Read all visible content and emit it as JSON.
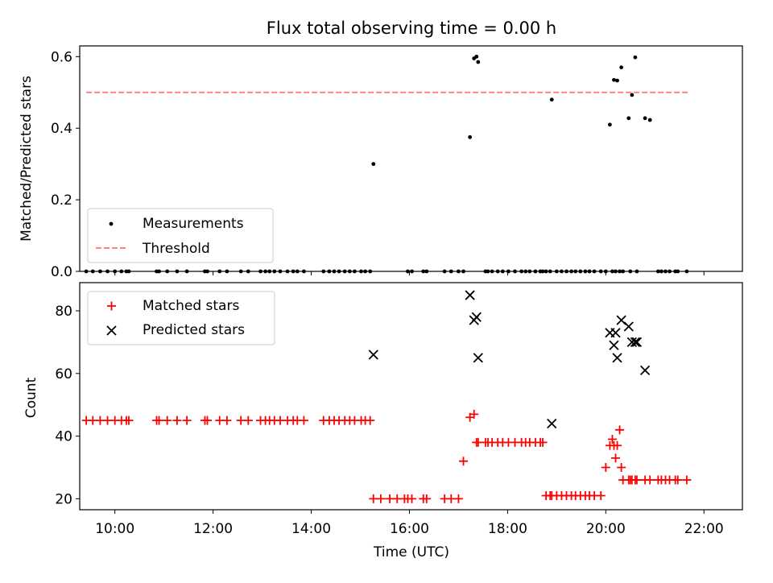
{
  "figure": {
    "title": "Flux total observing time = 0.00 h",
    "xlabel": "Time (UTC)",
    "xticks": [
      "10:00",
      "12:00",
      "14:00",
      "16:00",
      "18:00",
      "20:00",
      "22:00"
    ]
  },
  "chart_data": [
    {
      "type": "scatter",
      "ylabel": "Matched/Predicted stars",
      "xlim": [
        "09:17",
        "22:47"
      ],
      "ylim": [
        0,
        0.63
      ],
      "yticks": [
        "0.0",
        "0.2",
        "0.4",
        "0.6"
      ],
      "legend_position": "lower-left",
      "series": [
        {
          "name": "Measurements",
          "marker": "dot",
          "color": "#000000",
          "x": [
            "09:25",
            "09:33",
            "09:42",
            "09:51",
            "10:00",
            "10:08",
            "10:14",
            "10:17",
            "10:51",
            "10:54",
            "11:04",
            "11:16",
            "11:28",
            "11:50",
            "11:53",
            "12:08",
            "12:17",
            "12:34",
            "12:43",
            "12:58",
            "13:04",
            "13:09",
            "13:15",
            "13:22",
            "13:31",
            "13:38",
            "13:43",
            "13:51",
            "14:15",
            "14:22",
            "14:28",
            "14:34",
            "14:41",
            "14:47",
            "14:53",
            "15:01",
            "15:06",
            "15:12",
            "15:16",
            "15:58",
            "16:03",
            "16:17",
            "16:21",
            "16:43",
            "16:51",
            "17:00",
            "17:06",
            "17:14",
            "17:19",
            "17:22",
            "17:24",
            "17:33",
            "17:36",
            "17:41",
            "17:48",
            "17:54",
            "18:01",
            "18:09",
            "18:17",
            "18:22",
            "18:27",
            "18:34",
            "18:40",
            "18:43",
            "18:47",
            "18:52",
            "18:54",
            "19:00",
            "19:06",
            "19:12",
            "19:18",
            "19:23",
            "19:29",
            "19:35",
            "19:40",
            "19:46",
            "19:54",
            "20:00",
            "20:05",
            "20:08",
            "20:10",
            "20:12",
            "20:14",
            "20:17",
            "20:19",
            "20:21",
            "20:28",
            "20:30",
            "20:32",
            "20:36",
            "20:38",
            "20:48",
            "20:54",
            "21:04",
            "21:08",
            "21:13",
            "21:18",
            "21:25",
            "21:28",
            "21:39"
          ],
          "y": [
            0,
            0,
            0,
            0,
            0,
            0,
            0,
            0,
            0,
            0,
            0,
            0,
            0,
            0,
            0,
            0,
            0,
            0,
            0,
            0,
            0,
            0,
            0,
            0,
            0,
            0,
            0,
            0,
            0,
            0,
            0,
            0,
            0,
            0,
            0,
            0,
            0,
            0,
            0.3,
            0,
            0,
            0,
            0,
            0,
            0,
            0,
            0,
            0.375,
            0.595,
            0.6,
            0.585,
            0,
            0,
            0,
            0,
            0,
            0,
            0,
            0,
            0,
            0,
            0,
            0,
            0,
            0,
            0,
            0.48,
            0,
            0,
            0,
            0,
            0,
            0,
            0,
            0,
            0,
            0,
            0,
            0.41,
            0,
            0.535,
            0,
            0.533,
            0,
            0.57,
            0,
            0.428,
            0,
            0.493,
            0.598,
            0,
            0.428,
            0.423,
            0,
            0,
            0,
            0,
            0,
            0,
            0
          ]
        },
        {
          "name": "Threshold",
          "style": "dashed",
          "color": "#ff8080",
          "x": [
            "09:25",
            "21:40"
          ],
          "y": [
            0.5,
            0.5
          ]
        }
      ]
    },
    {
      "type": "scatter",
      "ylabel": "Count",
      "xlim": [
        "09:17",
        "22:47"
      ],
      "ylim": [
        16.5,
        89
      ],
      "yticks": [
        "20",
        "40",
        "60",
        "80"
      ],
      "legend_position": "upper-left",
      "series": [
        {
          "name": "Matched stars",
          "marker": "plus",
          "color": "#ff0000",
          "x": [
            "09:25",
            "09:33",
            "09:42",
            "09:51",
            "10:00",
            "10:08",
            "10:14",
            "10:17",
            "10:51",
            "10:54",
            "11:04",
            "11:16",
            "11:28",
            "11:50",
            "11:53",
            "12:08",
            "12:17",
            "12:34",
            "12:43",
            "12:58",
            "13:04",
            "13:09",
            "13:15",
            "13:22",
            "13:31",
            "13:38",
            "13:43",
            "13:51",
            "14:15",
            "14:22",
            "14:28",
            "14:34",
            "14:41",
            "14:47",
            "14:53",
            "15:01",
            "15:06",
            "15:12",
            "15:16",
            "15:25",
            "15:36",
            "15:45",
            "15:54",
            "15:58",
            "16:03",
            "16:17",
            "16:21",
            "16:43",
            "16:51",
            "17:00",
            "17:06",
            "17:14",
            "17:19",
            "17:22",
            "17:24",
            "17:33",
            "17:36",
            "17:41",
            "17:48",
            "17:54",
            "18:01",
            "18:09",
            "18:17",
            "18:22",
            "18:27",
            "18:34",
            "18:40",
            "18:43",
            "18:47",
            "18:52",
            "18:54",
            "19:00",
            "19:06",
            "19:12",
            "19:18",
            "19:23",
            "19:29",
            "19:35",
            "19:40",
            "19:46",
            "19:54",
            "20:00",
            "20:05",
            "20:08",
            "20:10",
            "20:12",
            "20:14",
            "20:17",
            "20:19",
            "20:21",
            "20:28",
            "20:30",
            "20:32",
            "20:36",
            "20:38",
            "20:48",
            "20:54",
            "21:04",
            "21:08",
            "21:13",
            "21:18",
            "21:25",
            "21:28",
            "21:39"
          ],
          "y": [
            45,
            45,
            45,
            45,
            45,
            45,
            45,
            45,
            45,
            45,
            45,
            45,
            45,
            45,
            45,
            45,
            45,
            45,
            45,
            45,
            45,
            45,
            45,
            45,
            45,
            45,
            45,
            45,
            45,
            45,
            45,
            45,
            45,
            45,
            45,
            45,
            45,
            45,
            20,
            20,
            20,
            20,
            20,
            20,
            20,
            20,
            20,
            20,
            20,
            20,
            32,
            46,
            47,
            38,
            38,
            38,
            38,
            38,
            38,
            38,
            38,
            38,
            38,
            38,
            38,
            38,
            38,
            38,
            21,
            21,
            21,
            21,
            21,
            21,
            21,
            21,
            21,
            21,
            21,
            21,
            21,
            30,
            37,
            39,
            37,
            33,
            37,
            42,
            30,
            26,
            26,
            26,
            26,
            26,
            26,
            26,
            26,
            26,
            26,
            26,
            26,
            26,
            26,
            26
          ]
        },
        {
          "name": "Predicted stars",
          "marker": "x",
          "color": "#000000",
          "x": [
            "15:16",
            "17:14",
            "17:19",
            "17:22",
            "17:24",
            "18:54",
            "20:05",
            "20:10",
            "20:12",
            "20:14",
            "20:19",
            "20:28",
            "20:32",
            "20:36",
            "20:38",
            "20:48"
          ],
          "y": [
            66,
            85,
            77,
            78,
            65,
            44,
            73,
            69,
            73,
            65,
            77,
            75,
            70,
            70,
            70,
            61
          ]
        }
      ]
    }
  ]
}
